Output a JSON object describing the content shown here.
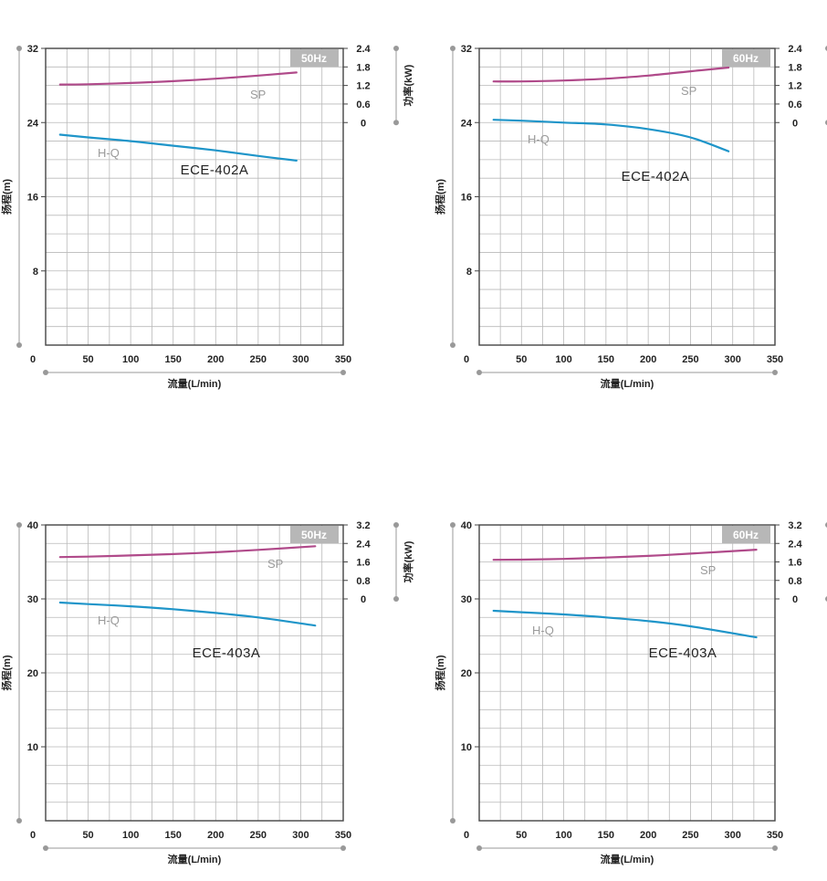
{
  "colors": {
    "grid": "#b9b9b9",
    "frame": "#444444",
    "axis_line": "#999999",
    "hq": "#1f95c9",
    "sp": "#b04a8a",
    "freq_badge": "#b7b7b7",
    "label": "#9a9a9a"
  },
  "chart_data": [
    {
      "type": "line",
      "model": "ECE-402A",
      "frequency": "50Hz",
      "xlabel": "流量(L/min)",
      "ylabel": "扬程(m)",
      "y2label": "功率(kW)",
      "xlim": [
        0,
        350
      ],
      "x_ticks": [
        "0",
        "50",
        "100",
        "150",
        "200",
        "250",
        "300",
        "350"
      ],
      "ylim": [
        0,
        32
      ],
      "y_ticks": [
        "0",
        "8",
        "16",
        "24",
        "32"
      ],
      "y2_ticks": [
        "0",
        "0.6",
        "1.2",
        "1.8",
        "2.4"
      ],
      "y2_step": 0.6,
      "grid": true,
      "series": [
        {
          "name": "H-Q",
          "axis": "left",
          "x": [
            17,
            50,
            100,
            150,
            200,
            250,
            295
          ],
          "y": [
            22.7,
            22.4,
            22.0,
            21.5,
            21.0,
            20.4,
            19.9
          ]
        },
        {
          "name": "SP",
          "axis": "right",
          "x": [
            17,
            50,
            100,
            150,
            200,
            250,
            295
          ],
          "y": [
            1.23,
            1.24,
            1.28,
            1.34,
            1.42,
            1.52,
            1.62
          ]
        }
      ]
    },
    {
      "type": "line",
      "model": "ECE-402A",
      "frequency": "60Hz",
      "xlabel": "流量(L/min)",
      "ylabel": "扬程(m)",
      "y2label": "功率(kW)",
      "xlim": [
        0,
        350
      ],
      "x_ticks": [
        "0",
        "50",
        "100",
        "150",
        "200",
        "250",
        "300",
        "350"
      ],
      "ylim": [
        0,
        32
      ],
      "y_ticks": [
        "0",
        "8",
        "16",
        "24",
        "32"
      ],
      "y2_ticks": [
        "0",
        "0.6",
        "1.2",
        "1.8",
        "2.4"
      ],
      "y2_step": 0.6,
      "grid": true,
      "series": [
        {
          "name": "H-Q",
          "axis": "left",
          "x": [
            17,
            50,
            100,
            150,
            200,
            250,
            295
          ],
          "y": [
            24.3,
            24.2,
            24.0,
            23.8,
            23.3,
            22.4,
            20.9
          ]
        },
        {
          "name": "SP",
          "axis": "right",
          "x": [
            17,
            50,
            100,
            150,
            200,
            250,
            295
          ],
          "y": [
            1.33,
            1.33,
            1.36,
            1.42,
            1.52,
            1.66,
            1.78
          ]
        }
      ]
    },
    {
      "type": "line",
      "model": "ECE-403A",
      "frequency": "50Hz",
      "xlabel": "流量(L/min)",
      "ylabel": "扬程(m)",
      "y2label": "功率(kW)",
      "xlim": [
        0,
        350
      ],
      "x_ticks": [
        "0",
        "50",
        "100",
        "150",
        "200",
        "250",
        "300",
        "350"
      ],
      "ylim": [
        0,
        40
      ],
      "y_ticks": [
        "0",
        "10",
        "20",
        "30",
        "40"
      ],
      "y2_ticks": [
        "0",
        "0.8",
        "1.6",
        "2.4",
        "3.2"
      ],
      "y2_step": 0.8,
      "grid": true,
      "series": [
        {
          "name": "H-Q",
          "axis": "left",
          "x": [
            17,
            50,
            100,
            150,
            200,
            250,
            317
          ],
          "y": [
            29.5,
            29.3,
            29.0,
            28.6,
            28.1,
            27.5,
            26.4
          ]
        },
        {
          "name": "SP",
          "axis": "right",
          "x": [
            17,
            50,
            100,
            150,
            200,
            250,
            317
          ],
          "y": [
            1.81,
            1.83,
            1.88,
            1.94,
            2.02,
            2.12,
            2.28
          ]
        }
      ]
    },
    {
      "type": "line",
      "model": "ECE-403A",
      "frequency": "60Hz",
      "xlabel": "流量(L/min)",
      "ylabel": "扬程(m)",
      "y2label": "功率(kW)",
      "xlim": [
        0,
        350
      ],
      "x_ticks": [
        "0",
        "50",
        "100",
        "150",
        "200",
        "250",
        "300",
        "350"
      ],
      "ylim": [
        0,
        40
      ],
      "y_ticks": [
        "0",
        "10",
        "20",
        "30",
        "40"
      ],
      "y2_ticks": [
        "0",
        "0.8",
        "1.6",
        "2.4",
        "3.2"
      ],
      "y2_step": 0.8,
      "grid": true,
      "series": [
        {
          "name": "H-Q",
          "axis": "left",
          "x": [
            17,
            50,
            100,
            150,
            200,
            250,
            328
          ],
          "y": [
            28.4,
            28.2,
            27.9,
            27.5,
            27.0,
            26.3,
            24.8
          ]
        },
        {
          "name": "SP",
          "axis": "right",
          "x": [
            17,
            50,
            100,
            150,
            200,
            250,
            328
          ],
          "y": [
            1.69,
            1.7,
            1.73,
            1.79,
            1.86,
            1.96,
            2.13
          ]
        }
      ]
    }
  ]
}
